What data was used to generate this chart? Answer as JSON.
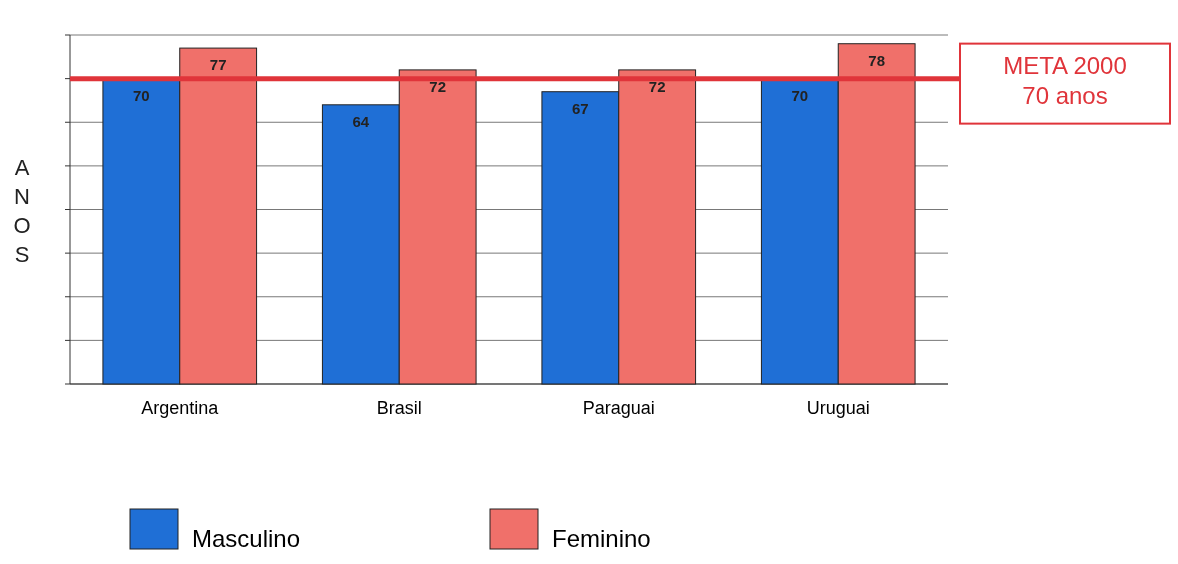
{
  "chart_data": {
    "type": "bar",
    "ylabel": "ANOS",
    "categories": [
      "Argentina",
      "Brasil",
      "Paraguai",
      "Uruguai"
    ],
    "series": [
      {
        "name": "Masculino",
        "color": "#1f6fd6",
        "values": [
          70,
          64,
          67,
          70
        ]
      },
      {
        "name": "Feminino",
        "color": "#f0706a",
        "values": [
          77,
          72,
          72,
          78
        ]
      }
    ],
    "data_labels": true,
    "ylim": [
      0,
      80
    ],
    "yticks": [
      {
        "value": 0,
        "label": null
      },
      {
        "value": 10,
        "label": null
      },
      {
        "value": 20,
        "label": null
      },
      {
        "value": 30,
        "label": null
      },
      {
        "value": 40,
        "label": null
      },
      {
        "value": 50,
        "label": null
      },
      {
        "value": 60,
        "label": null
      },
      {
        "value": 70,
        "label": null
      },
      {
        "value": 80,
        "label": null
      }
    ],
    "tick_labels": "x",
    "grid": "y",
    "legend": "bottom",
    "ref_lines": [
      {
        "axis": "y",
        "value": 70,
        "label": "META 2000\n70 anos",
        "color": "#e0343a"
      }
    ]
  }
}
